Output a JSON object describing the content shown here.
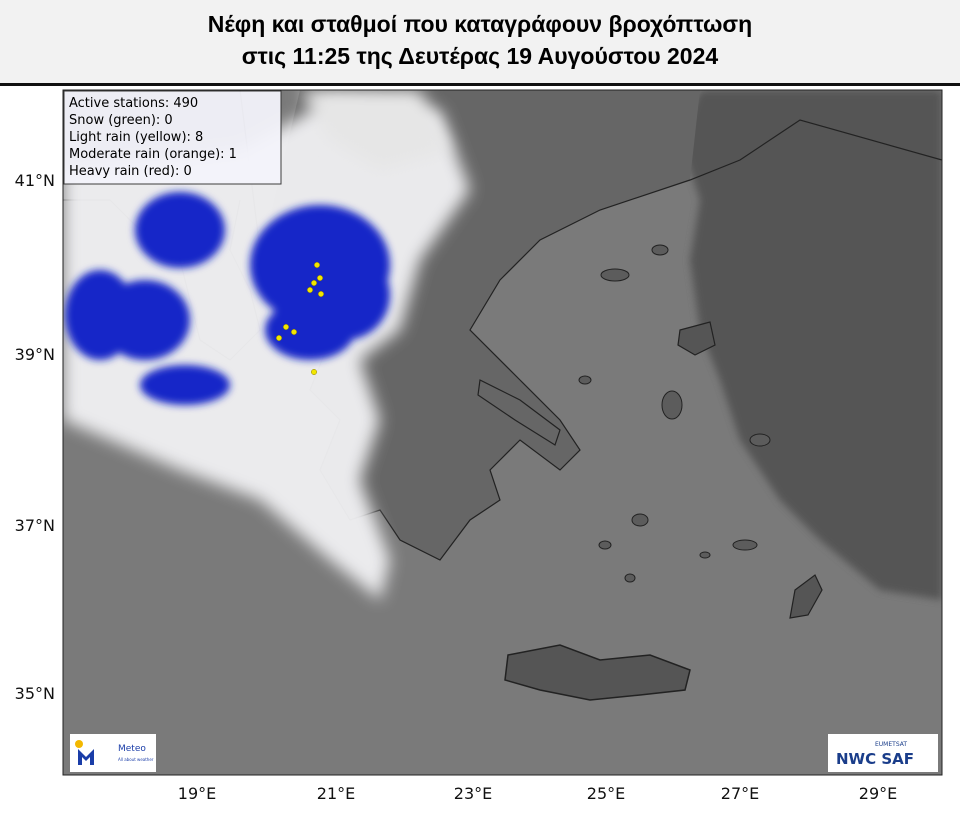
{
  "header": {
    "title_lines": [
      "Νέφη και σταθμοί που καταγράφουν βροχόπτωση",
      "στις 11:25 της Δευτέρας 19 Αυγούστου 2024"
    ]
  },
  "map": {
    "legend": [
      "Active stations: 490",
      "Snow (green): 0",
      "Light rain (yellow): 8",
      "Moderate rain (orange): 1",
      "Heavy rain (red): 0"
    ],
    "lat_labels": [
      "41°N",
      "39°N",
      "37°N",
      "35°N"
    ],
    "lon_labels": [
      "19°E",
      "21°E",
      "23°E",
      "25°E",
      "27°E",
      "29°E"
    ],
    "logos": {
      "meteo": "Meteo",
      "meteo_tagline": "All about weather",
      "eumetsat": "EUMETSAT",
      "nwcsaf": "NWC SAF"
    }
  }
}
